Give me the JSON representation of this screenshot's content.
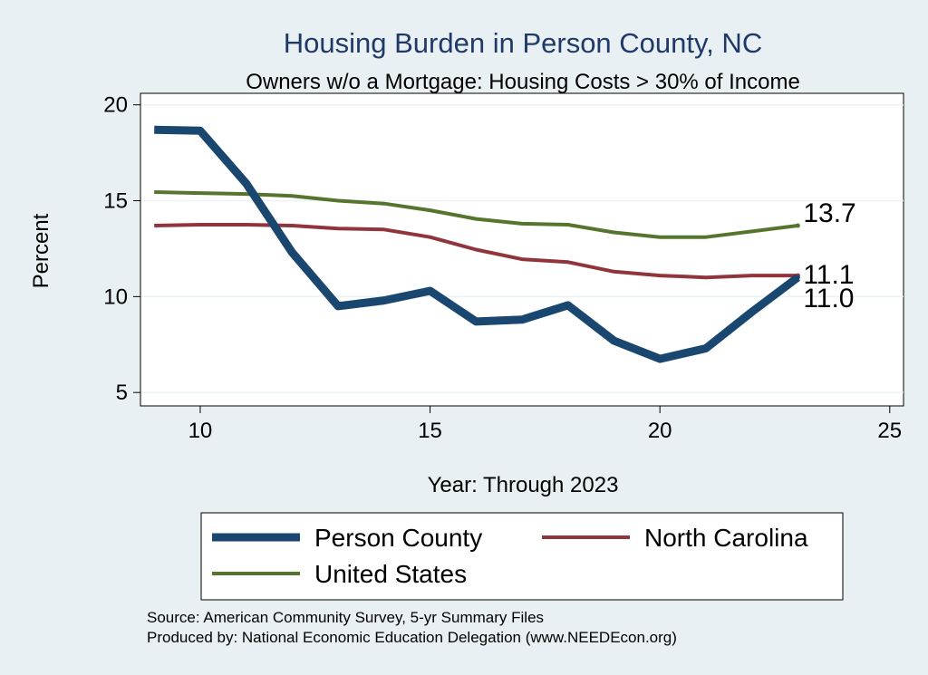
{
  "chart_data": {
    "type": "line",
    "title": "Housing Burden in Person County, NC",
    "subtitle": "Owners w/o a Mortgage: Housing Costs > 30% of Income",
    "xlabel": "Year: Through 2023",
    "ylabel": "Percent",
    "xlim": [
      8.7,
      25.3
    ],
    "ylim": [
      4.3,
      20.6
    ],
    "xticks": [
      10,
      15,
      20,
      25
    ],
    "yticks": [
      5,
      10,
      15,
      20
    ],
    "grid": "horizontal",
    "x": [
      9,
      10,
      11,
      12,
      13,
      14,
      15,
      16,
      17,
      18,
      19,
      20,
      21,
      22,
      23
    ],
    "series": [
      {
        "name": "Person County",
        "color": "#1a476f",
        "values": [
          18.7,
          18.65,
          15.9,
          12.3,
          9.5,
          9.8,
          10.3,
          8.7,
          8.8,
          9.55,
          7.7,
          6.75,
          7.3,
          9.2,
          11.0
        ],
        "end_label": "11.0"
      },
      {
        "name": "North Carolina",
        "color": "#90353b",
        "values": [
          13.7,
          13.75,
          13.75,
          13.7,
          13.55,
          13.5,
          13.1,
          12.45,
          11.95,
          11.8,
          11.3,
          11.1,
          11.0,
          11.1,
          11.1
        ],
        "end_label": "11.1"
      },
      {
        "name": "United States",
        "color": "#55752f",
        "values": [
          15.45,
          15.4,
          15.35,
          15.25,
          15.0,
          14.85,
          14.5,
          14.05,
          13.8,
          13.75,
          13.35,
          13.1,
          13.1,
          13.4,
          13.7
        ],
        "end_label": "13.7"
      }
    ]
  },
  "source_lines": [
    "Source: American Community Survey, 5-yr Summary Files",
    "Produced by: National Economic Education Delegation (www.NEEDEcon.org)"
  ]
}
